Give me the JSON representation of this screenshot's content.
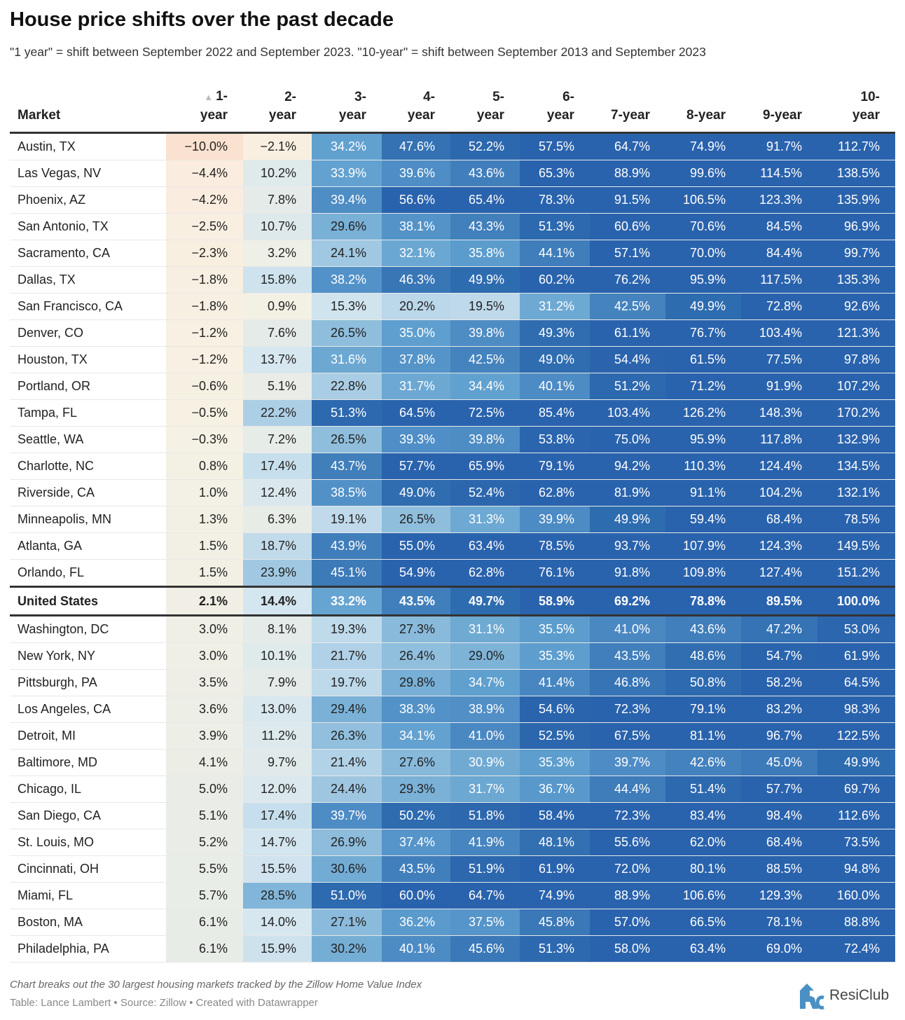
{
  "title": "House price shifts over the past decade",
  "subtitle": "\"1 year\" = shift between September 2022 and September 2023. \"10-year\" = shift between September 2013 and September 2023",
  "columns": [
    "Market",
    "1-\nyear",
    "2-\nyear",
    "3-\nyear",
    "4-\nyear",
    "5-\nyear",
    "6-\nyear",
    "7-year",
    "8-year",
    "9-year",
    "10-\nyear"
  ],
  "sort_indicator": "▲",
  "notes": "Chart breaks out the 30 largest housing markets tracked by the Zillow Home Value Index",
  "credit": "Table: Lance Lambert • Source: Zillow • Created with Datawrapper",
  "logo_text": "ResiClub",
  "colors": {
    "negative": "#fbe2d0",
    "zero": "#f5f1e4",
    "mid": "#bcd8ea",
    "high": "#2a63ad",
    "logo": "#4a90c4"
  },
  "chart_data": {
    "type": "table",
    "highlight_row": "United States",
    "rows": [
      {
        "market": "Austin, TX",
        "values": [
          -10.0,
          -2.1,
          34.2,
          47.6,
          52.2,
          57.5,
          64.7,
          74.9,
          91.7,
          112.7
        ]
      },
      {
        "market": "Las Vegas, NV",
        "values": [
          -4.4,
          10.2,
          33.9,
          39.6,
          43.6,
          65.3,
          88.9,
          99.6,
          114.5,
          138.5
        ]
      },
      {
        "market": "Phoenix, AZ",
        "values": [
          -4.2,
          7.8,
          39.4,
          56.6,
          65.4,
          78.3,
          91.5,
          106.5,
          123.3,
          135.9
        ]
      },
      {
        "market": "San Antonio, TX",
        "values": [
          -2.5,
          10.7,
          29.6,
          38.1,
          43.3,
          51.3,
          60.6,
          70.6,
          84.5,
          96.9
        ]
      },
      {
        "market": "Sacramento, CA",
        "values": [
          -2.3,
          3.2,
          24.1,
          32.1,
          35.8,
          44.1,
          57.1,
          70.0,
          84.4,
          99.7
        ]
      },
      {
        "market": "Dallas, TX",
        "values": [
          -1.8,
          15.8,
          38.2,
          46.3,
          49.9,
          60.2,
          76.2,
          95.9,
          117.5,
          135.3
        ]
      },
      {
        "market": "San Francisco, CA",
        "values": [
          -1.8,
          0.9,
          15.3,
          20.2,
          19.5,
          31.2,
          42.5,
          49.9,
          72.8,
          92.6
        ]
      },
      {
        "market": "Denver, CO",
        "values": [
          -1.2,
          7.6,
          26.5,
          35.0,
          39.8,
          49.3,
          61.1,
          76.7,
          103.4,
          121.3
        ]
      },
      {
        "market": "Houston, TX",
        "values": [
          -1.2,
          13.7,
          31.6,
          37.8,
          42.5,
          49.0,
          54.4,
          61.5,
          77.5,
          97.8
        ]
      },
      {
        "market": "Portland, OR",
        "values": [
          -0.6,
          5.1,
          22.8,
          31.7,
          34.4,
          40.1,
          51.2,
          71.2,
          91.9,
          107.2
        ]
      },
      {
        "market": "Tampa, FL",
        "values": [
          -0.5,
          22.2,
          51.3,
          64.5,
          72.5,
          85.4,
          103.4,
          126.2,
          148.3,
          170.2
        ]
      },
      {
        "market": "Seattle, WA",
        "values": [
          -0.3,
          7.2,
          26.5,
          39.3,
          39.8,
          53.8,
          75.0,
          95.9,
          117.8,
          132.9
        ]
      },
      {
        "market": "Charlotte, NC",
        "values": [
          0.8,
          17.4,
          43.7,
          57.7,
          65.9,
          79.1,
          94.2,
          110.3,
          124.4,
          134.5
        ]
      },
      {
        "market": "Riverside, CA",
        "values": [
          1.0,
          12.4,
          38.5,
          49.0,
          52.4,
          62.8,
          81.9,
          91.1,
          104.2,
          132.1
        ]
      },
      {
        "market": "Minneapolis, MN",
        "values": [
          1.3,
          6.3,
          19.1,
          26.5,
          31.3,
          39.9,
          49.9,
          59.4,
          68.4,
          78.5
        ]
      },
      {
        "market": "Atlanta, GA",
        "values": [
          1.5,
          18.7,
          43.9,
          55.0,
          63.4,
          78.5,
          93.7,
          107.9,
          124.3,
          149.5
        ]
      },
      {
        "market": "Orlando, FL",
        "values": [
          1.5,
          23.9,
          45.1,
          54.9,
          62.8,
          76.1,
          91.8,
          109.8,
          127.4,
          151.2
        ]
      },
      {
        "market": "United States",
        "values": [
          2.1,
          14.4,
          33.2,
          43.5,
          49.7,
          58.9,
          69.2,
          78.8,
          89.5,
          100.0
        ]
      },
      {
        "market": "Washington, DC",
        "values": [
          3.0,
          8.1,
          19.3,
          27.3,
          31.1,
          35.5,
          41.0,
          43.6,
          47.2,
          53.0
        ]
      },
      {
        "market": "New York, NY",
        "values": [
          3.0,
          10.1,
          21.7,
          26.4,
          29.0,
          35.3,
          43.5,
          48.6,
          54.7,
          61.9
        ]
      },
      {
        "market": "Pittsburgh, PA",
        "values": [
          3.5,
          7.9,
          19.7,
          29.8,
          34.7,
          41.4,
          46.8,
          50.8,
          58.2,
          64.5
        ]
      },
      {
        "market": "Los Angeles, CA",
        "values": [
          3.6,
          13.0,
          29.4,
          38.3,
          38.9,
          54.6,
          72.3,
          79.1,
          83.2,
          98.3
        ]
      },
      {
        "market": "Detroit, MI",
        "values": [
          3.9,
          11.2,
          26.3,
          34.1,
          41.0,
          52.5,
          67.5,
          81.1,
          96.7,
          122.5
        ]
      },
      {
        "market": "Baltimore, MD",
        "values": [
          4.1,
          9.7,
          21.4,
          27.6,
          30.9,
          35.3,
          39.7,
          42.6,
          45.0,
          49.9
        ]
      },
      {
        "market": "Chicago, IL",
        "values": [
          5.0,
          12.0,
          24.4,
          29.3,
          31.7,
          36.7,
          44.4,
          51.4,
          57.7,
          69.7
        ]
      },
      {
        "market": "San Diego, CA",
        "values": [
          5.1,
          17.4,
          39.7,
          50.2,
          51.8,
          58.4,
          72.3,
          83.4,
          98.4,
          112.6
        ]
      },
      {
        "market": "St. Louis, MO",
        "values": [
          5.2,
          14.7,
          26.9,
          37.4,
          41.9,
          48.1,
          55.6,
          62.0,
          68.4,
          73.5
        ]
      },
      {
        "market": "Cincinnati, OH",
        "values": [
          5.5,
          15.5,
          30.6,
          43.5,
          51.9,
          61.9,
          72.0,
          80.1,
          88.5,
          94.8
        ]
      },
      {
        "market": "Miami, FL",
        "values": [
          5.7,
          28.5,
          51.0,
          60.0,
          64.7,
          74.9,
          88.9,
          106.6,
          129.3,
          160.0
        ]
      },
      {
        "market": "Boston, MA",
        "values": [
          6.1,
          14.0,
          27.1,
          36.2,
          37.5,
          45.8,
          57.0,
          66.5,
          78.1,
          88.8
        ]
      },
      {
        "market": "Philadelphia, PA",
        "values": [
          6.1,
          15.9,
          30.2,
          40.1,
          45.6,
          51.3,
          58.0,
          63.4,
          69.0,
          72.4
        ]
      }
    ]
  }
}
